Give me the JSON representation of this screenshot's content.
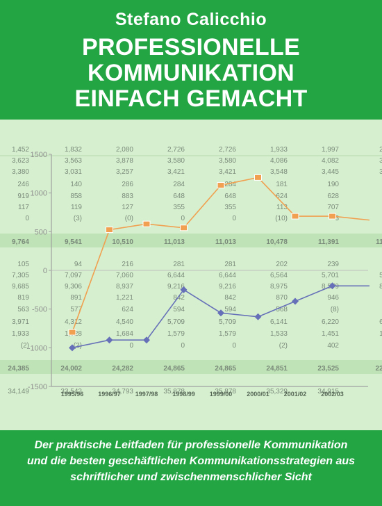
{
  "cover": {
    "author": "Stefano Calicchio",
    "title_lines": [
      "PROFESSIONELLE",
      "KOMMUNIKATION",
      "EINFACH GEMACHT"
    ],
    "subtitle_lines": [
      "Der praktische Leitfaden für professionelle Kommunikation",
      "und die besten geschäftlichen Kommunikationsstrategien aus",
      "schriftlicher und zwischenmenschlicher Sicht"
    ]
  },
  "colors": {
    "green": "#23a544",
    "background_pale": "#d6f0cf",
    "band": "#bfe3b6",
    "orange_line": "#f0a050",
    "blue_line": "#6670b8"
  },
  "table": {
    "top_rows": [
      [
        "1,452",
        "1,832",
        "2,080",
        "2,726",
        "2,726",
        "1,933",
        "1,997",
        "2,4"
      ],
      [
        "3,623",
        "3,563",
        "3,878",
        "3,580",
        "3,580",
        "4,086",
        "4,082",
        "3,7"
      ],
      [
        "3,380",
        "3,031",
        "3,257",
        "3,421",
        "3,421",
        "3,548",
        "3,445",
        "3,6"
      ],
      [
        "246",
        "140",
        "286",
        "284",
        "284",
        "181",
        "190",
        "1"
      ],
      [
        "919",
        "858",
        "883",
        "648",
        "648",
        "624",
        "628",
        "7"
      ],
      [
        "117",
        "119",
        "127",
        "355",
        "355",
        "113",
        "707",
        "7"
      ],
      [
        "0",
        "(3)",
        "(0)",
        "0",
        "0",
        "(10)",
        "3",
        "0"
      ]
    ],
    "band1": [
      "9,764",
      "9,541",
      "10,510",
      "11,013",
      "11,013",
      "10,478",
      "11,391",
      "11,5"
    ],
    "mid_rows": [
      [
        "105",
        "94",
        "216",
        "281",
        "281",
        "202",
        "239",
        "1"
      ],
      [
        "7,305",
        "7,097",
        "7,060",
        "6,644",
        "6,644",
        "6,564",
        "5,701",
        "5,6"
      ],
      [
        "9,685",
        "9,306",
        "8,937",
        "9,216",
        "9,216",
        "8,975",
        "8,579",
        "8,1"
      ],
      [
        "819",
        "891",
        "1,221",
        "842",
        "842",
        "870",
        "946",
        "8"
      ],
      [
        "563",
        "577",
        "624",
        "594",
        "594",
        "568",
        "(8)",
        "9"
      ],
      [
        "3,971",
        "4,312",
        "4,540",
        "5,709",
        "5,709",
        "6,141",
        "6,220",
        "6,1"
      ],
      [
        "1,933",
        "1,928",
        "1,684",
        "1,579",
        "1,579",
        "1,533",
        "1,451",
        "1,4"
      ],
      [
        "(2)",
        "(2)",
        "0",
        "0",
        "0",
        "(2)",
        "402",
        "4"
      ]
    ],
    "band2": [
      "24,385",
      "24,002",
      "24,282",
      "24,865",
      "24,865",
      "24,851",
      "23,525",
      "22,8"
    ],
    "bottom_row": [
      "34,149",
      "33,542",
      "34,793",
      "35,878",
      "35,878",
      "35,329",
      "34,915",
      ""
    ]
  },
  "chart_data": {
    "type": "line",
    "categories": [
      "1995/96",
      "1996/97",
      "1997/98",
      "1998/99",
      "1999/00",
      "2000/01",
      "2001/02",
      "2002/03",
      ""
    ],
    "y_ticks": [
      "1500",
      "1000",
      "500",
      "0",
      "-500",
      "-1000",
      "-1500"
    ],
    "ylim": [
      -1500,
      1500
    ],
    "series": [
      {
        "values": [
          -800,
          525,
          600,
          550,
          1100,
          1200,
          700,
          700,
          650
        ]
      },
      {
        "values": [
          -1000,
          -900,
          -900,
          -250,
          -550,
          -600,
          -400,
          -200,
          -200
        ]
      }
    ]
  }
}
